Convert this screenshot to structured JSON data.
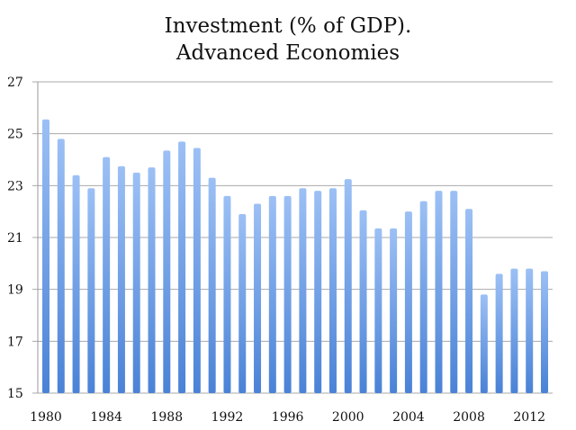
{
  "chart_data": {
    "type": "bar",
    "title": "Investment (% of GDP).",
    "subtitle": "Advanced Economies",
    "xlabel": "",
    "ylabel": "",
    "ylim": [
      15,
      27
    ],
    "yticks": [
      "15",
      "17",
      "19",
      "21",
      "23",
      "25",
      "27"
    ],
    "xtick_labels": [
      "1980",
      "1984",
      "1988",
      "1992",
      "1996",
      "2000",
      "2004",
      "2008",
      "2012"
    ],
    "grid": true,
    "bar_color": "#6fa0e8",
    "categories": [
      "1980",
      "1981",
      "1982",
      "1983",
      "1984",
      "1985",
      "1986",
      "1987",
      "1988",
      "1989",
      "1990",
      "1991",
      "1992",
      "1993",
      "1994",
      "1995",
      "1996",
      "1997",
      "1998",
      "1999",
      "2000",
      "2001",
      "2002",
      "2003",
      "2004",
      "2005",
      "2006",
      "2007",
      "2008",
      "2009",
      "2010",
      "2011",
      "2012",
      "2013"
    ],
    "values": [
      25.55,
      24.8,
      23.4,
      22.9,
      24.1,
      23.75,
      23.5,
      23.7,
      24.35,
      24.7,
      24.45,
      23.3,
      22.6,
      21.9,
      22.3,
      22.6,
      22.6,
      22.9,
      22.8,
      22.9,
      23.25,
      22.05,
      21.35,
      21.35,
      22.0,
      22.4,
      22.8,
      22.8,
      22.1,
      18.8,
      19.6,
      19.8,
      19.8,
      19.7
    ]
  }
}
